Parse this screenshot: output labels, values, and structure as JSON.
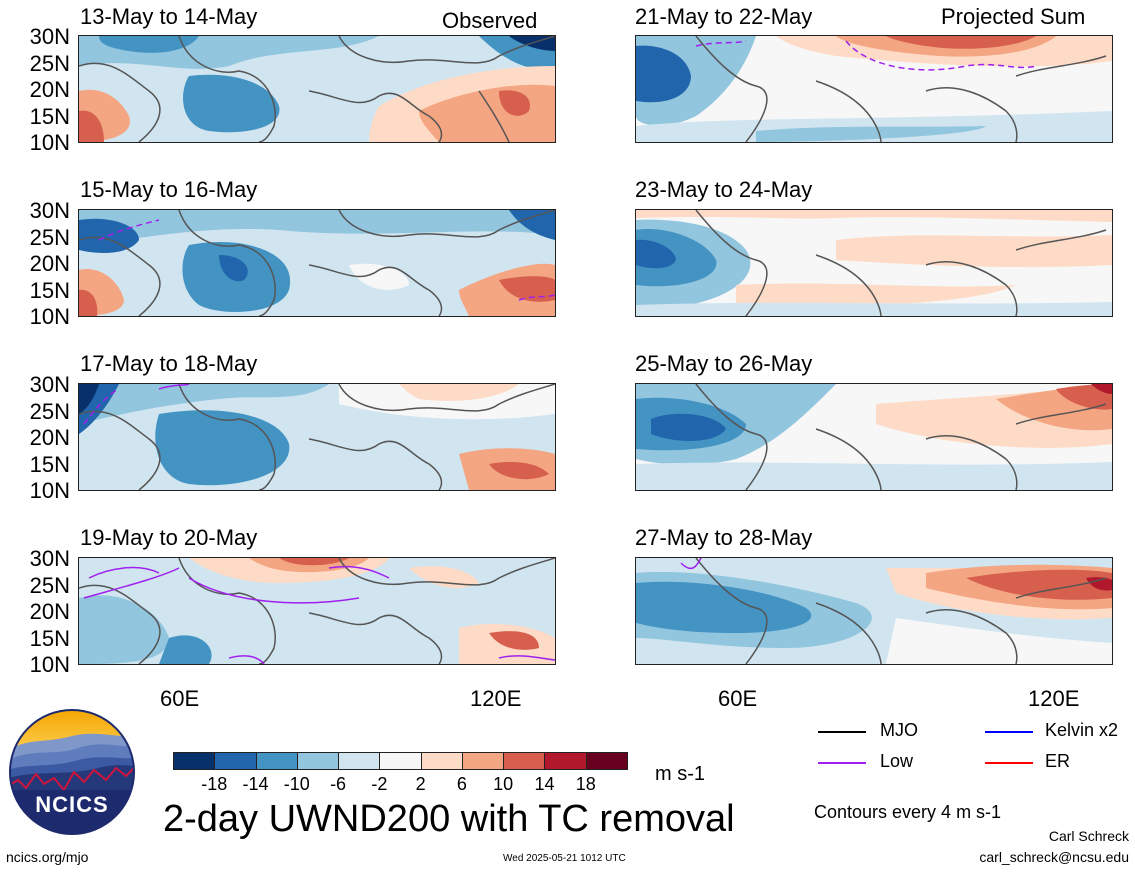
{
  "header": {
    "left_label": "Observed",
    "right_label": "Projected Sum"
  },
  "panels": {
    "left": [
      {
        "date": "13-May to 14-May"
      },
      {
        "date": "15-May to 16-May"
      },
      {
        "date": "17-May to 18-May"
      },
      {
        "date": "19-May to 20-May"
      }
    ],
    "right": [
      {
        "date": "21-May to 22-May"
      },
      {
        "date": "23-May to 24-May"
      },
      {
        "date": "25-May to 26-May"
      },
      {
        "date": "27-May to 28-May"
      }
    ]
  },
  "axes": {
    "y_ticks": [
      "30N",
      "25N",
      "20N",
      "15N",
      "10N"
    ],
    "x_ticks": [
      "60E",
      "120E"
    ]
  },
  "colorbar": {
    "ticks": [
      "-18",
      "-14",
      "-10",
      "-6",
      "-2",
      "2",
      "6",
      "10",
      "14",
      "18"
    ],
    "units": "m s-1",
    "colors": [
      "#08306b",
      "#2166ac",
      "#4393c3",
      "#92c5de",
      "#d1e5f0",
      "#f7f7f7",
      "#fddbc7",
      "#f4a582",
      "#d6604d",
      "#b2182b",
      "#67001f"
    ]
  },
  "legend": {
    "items": [
      {
        "label": "MJO",
        "color": "#000000"
      },
      {
        "label": "Kelvin x2",
        "color": "#0000ff"
      },
      {
        "label": "Low",
        "color": "#a020f0"
      },
      {
        "label": "ER",
        "color": "#ff0000"
      }
    ],
    "contour_note": "Contours every 4 m s-1"
  },
  "footer": {
    "logo_text": "NCICS",
    "title": "2-day UWND200 with TC removal",
    "url": "ncics.org/mjo",
    "timestamp": "Wed 2025-05-21 1012 UTC",
    "author": "Carl Schreck",
    "email": "carl_schreck@ncsu.edu"
  }
}
